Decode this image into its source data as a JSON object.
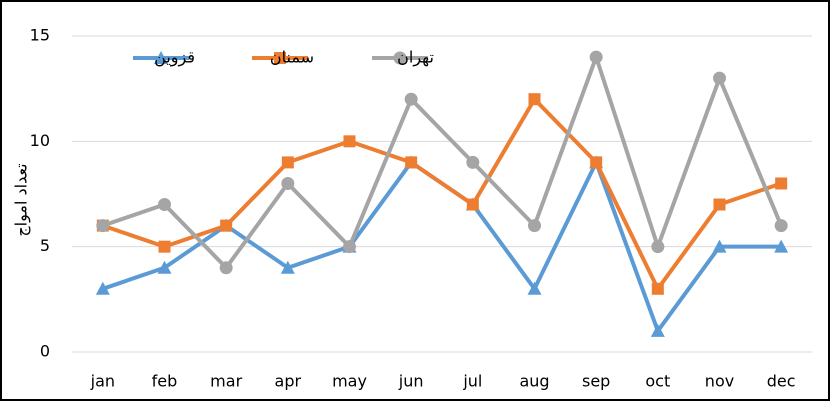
{
  "chart_data": {
    "type": "line",
    "y_label": "تعداد امواج",
    "categories": [
      "jan",
      "feb",
      "mar",
      "apr",
      "may",
      "jun",
      "jul",
      "aug",
      "sep",
      "oct",
      "nov",
      "dec"
    ],
    "series": [
      {
        "name": "قزوین",
        "color": "#5b9bd5",
        "marker": "triangle",
        "values": [
          3,
          4,
          6,
          4,
          5,
          9,
          7,
          3,
          9,
          1,
          5,
          5
        ]
      },
      {
        "name": "سمنان",
        "color": "#ed7d31",
        "marker": "square",
        "values": [
          6,
          5,
          6,
          9,
          10,
          9,
          7,
          12,
          9,
          3,
          7,
          8
        ]
      },
      {
        "name": "تهران",
        "color": "#a5a5a5",
        "marker": "circle",
        "values": [
          6,
          7,
          4,
          8,
          5,
          12,
          9,
          6,
          14,
          5,
          13,
          6
        ]
      }
    ],
    "ylim": [
      0,
      15
    ],
    "yticks": [
      0,
      5,
      10,
      15
    ],
    "grid": true
  }
}
